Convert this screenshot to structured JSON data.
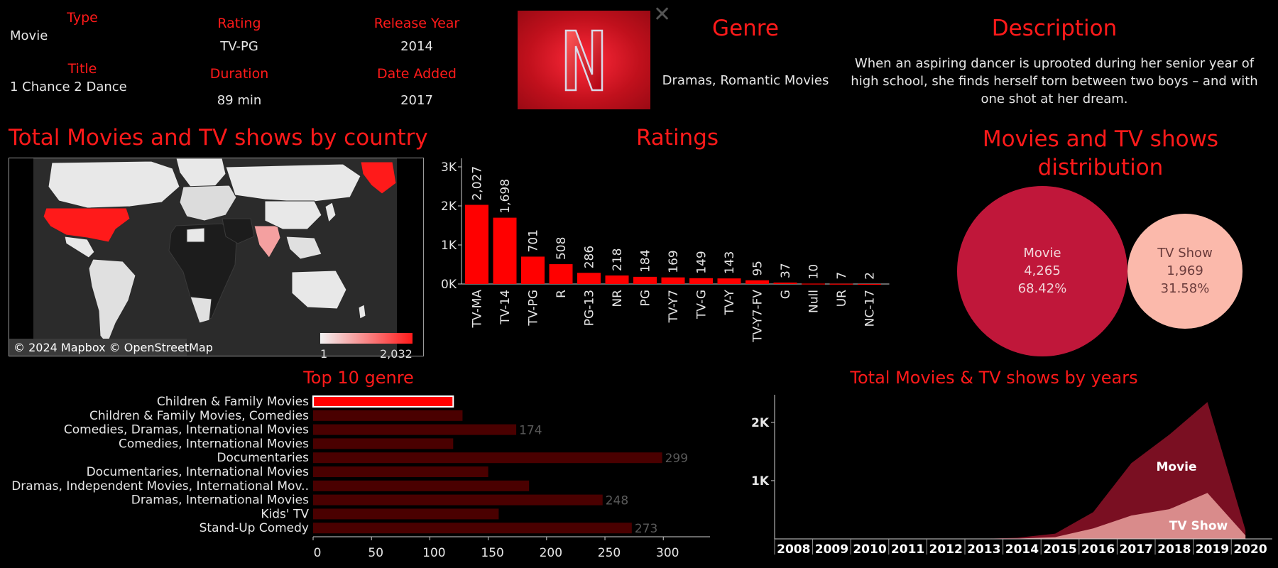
{
  "detail": {
    "type_label": "Type",
    "type_value": "Movie",
    "title_label": "Title",
    "title_value": "1 Chance 2 Dance",
    "rating_label": "Rating",
    "rating_value": "TV-PG",
    "duration_label": "Duration",
    "duration_value": "89 min",
    "release_label": "Release Year",
    "release_value": "2014",
    "added_label": "Date Added",
    "added_value": "2017",
    "genre_label": "Genre",
    "genre_value": "Dramas, Romantic Movies",
    "description_label": "Description",
    "description_value": "When an aspiring dancer is uprooted during her senior year of high school, she finds herself torn between two boys – and with one shot at her dream.",
    "close_icon": "✕",
    "logo_letter": "N"
  },
  "map": {
    "title": "Total Movies and TV shows by country",
    "attribution": "© 2024 Mapbox © OpenStreetMap",
    "legend_min": "1",
    "legend_max": "2,032",
    "color_low": "#f2f2f2",
    "color_high": "#ff1a1a"
  },
  "colors": {
    "accent": "#ff1a1a",
    "bar": "#ff0000",
    "movie": "#c0173a",
    "tvshow": "#fbb9ab",
    "genre_selected": "#ff0000",
    "genre_bar": "#4a0000",
    "area_movie": "#7a0f22",
    "area_tv": "#d98b8b"
  },
  "chart_data": [
    {
      "type": "bar",
      "title": "Ratings",
      "categories": [
        "TV-MA",
        "TV-14",
        "TV-PG",
        "R",
        "PG-13",
        "NR",
        "PG",
        "TV-Y7",
        "TV-G",
        "TV-Y",
        "TV-Y7-FV",
        "G",
        "Null",
        "UR",
        "NC-17"
      ],
      "values": [
        2027,
        1698,
        701,
        508,
        286,
        218,
        184,
        169,
        149,
        143,
        95,
        37,
        10,
        7,
        2
      ],
      "labels": [
        "2,027",
        "1,698",
        "701",
        "508",
        "286",
        "218",
        "184",
        "169",
        "149",
        "143",
        "95",
        "37",
        "10",
        "7",
        "2"
      ],
      "ticks": [
        "0K",
        "1K",
        "2K",
        "3K"
      ],
      "ylim": [
        0,
        3000
      ]
    },
    {
      "type": "pie",
      "title": "Movies and TV shows distribution",
      "slices": [
        {
          "name": "Movie",
          "value": "4,265",
          "percent": "68.42%"
        },
        {
          "name": "TV Show",
          "value": "1,969",
          "percent": "31.58%"
        }
      ]
    },
    {
      "type": "bar",
      "orientation": "horizontal",
      "title": "Top 10 genre",
      "categories": [
        "Children & Family Movies",
        "Children & Family Movies, Comedies",
        "Comedies, Dramas, International Movies",
        "Comedies, International Movies",
        "Documentaries",
        "Documentaries, International Movies",
        "Dramas, Independent Movies, International Mov..",
        "Dramas, International Movies",
        "Kids' TV",
        "Stand-Up Comedy"
      ],
      "values": [
        120,
        128,
        174,
        120,
        299,
        150,
        185,
        248,
        159,
        273
      ],
      "labels": [
        "",
        "",
        "174",
        "",
        "299",
        "",
        "",
        "248",
        "",
        "273"
      ],
      "selected": 0,
      "ticks": [
        "0",
        "50",
        "100",
        "150",
        "200",
        "250",
        "300"
      ],
      "xlim": [
        0,
        340
      ]
    },
    {
      "type": "area",
      "title": "Total Movies & TV shows by years",
      "x": [
        "2008",
        "2009",
        "2010",
        "2011",
        "2012",
        "2013",
        "2014",
        "2015",
        "2016",
        "2017",
        "2018",
        "2019",
        "2020"
      ],
      "series": [
        {
          "name": "Movie",
          "values": [
            0,
            0,
            0,
            0,
            0,
            0,
            20,
            90,
            460,
            1300,
            1790,
            2350,
            150
          ]
        },
        {
          "name": "TV Show",
          "values": [
            0,
            0,
            0,
            0,
            0,
            0,
            5,
            30,
            180,
            400,
            510,
            790,
            60
          ]
        }
      ],
      "ticks": [
        "1K",
        "2K"
      ],
      "ylim": [
        0,
        2450
      ]
    }
  ]
}
